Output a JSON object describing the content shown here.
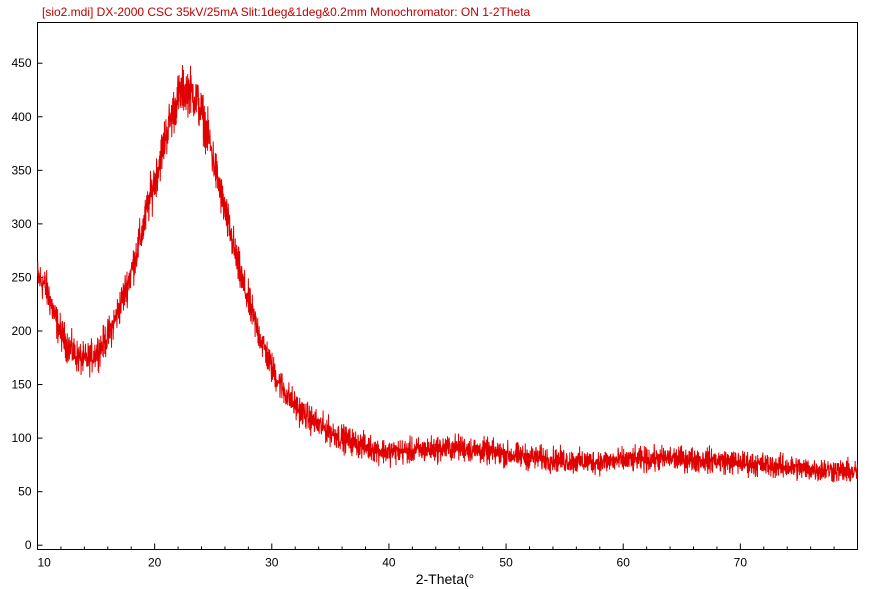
{
  "chart_data": {
    "type": "line",
    "title": "[sio2.mdi] DX-2000 CSC 35kV/25mA Slit:1deg&1deg&0.2mm Monochromator: ON 1-2Theta",
    "xlabel": "2-Theta(°",
    "ylabel": "",
    "xlim": [
      10,
      80
    ],
    "ylim": [
      -4,
      488
    ],
    "x_ticks": [
      10,
      20,
      30,
      40,
      50,
      60,
      70
    ],
    "x_tick_labels": [
      "10",
      "20",
      "30",
      "40",
      "50",
      "60",
      "70"
    ],
    "y_ticks": [
      0,
      50,
      100,
      150,
      200,
      250,
      300,
      350,
      400,
      450
    ],
    "y_tick_labels": [
      "0",
      "50",
      "100",
      "150",
      "200",
      "250",
      "300",
      "350",
      "400",
      "450"
    ],
    "grid": false,
    "legend": "none",
    "colors": {
      "series": "#e00000",
      "title": "#c00000",
      "axes": "#000000"
    },
    "series": [
      {
        "x": [
          10,
          10.5,
          11,
          11.5,
          12,
          12.5,
          13,
          13.5,
          14,
          14.5,
          15,
          15.5,
          16,
          16.5,
          17,
          17.5,
          18,
          18.5,
          19,
          19.5,
          20,
          20.5,
          21,
          21.5,
          22,
          22.5,
          23,
          23.5,
          24,
          24.5,
          25,
          25.5,
          26,
          26.5,
          27,
          27.5,
          28,
          28.5,
          29,
          29.5,
          30,
          31,
          32,
          33,
          34,
          35,
          36,
          37,
          38,
          39,
          40,
          42,
          44,
          46,
          48,
          50,
          52,
          54,
          56,
          58,
          60,
          62,
          64,
          66,
          68,
          70,
          72,
          74,
          76,
          78,
          80
        ],
        "y": [
          250,
          245,
          232,
          212,
          198,
          188,
          181,
          175,
          172,
          175,
          180,
          186,
          195,
          207,
          222,
          238,
          255,
          275,
          295,
          320,
          340,
          362,
          385,
          402,
          418,
          426,
          425,
          418,
          404,
          385,
          360,
          335,
          312,
          290,
          266,
          245,
          228,
          210,
          195,
          180,
          165,
          145,
          130,
          120,
          112,
          106,
          100,
          96,
          92,
          89,
          87,
          88,
          90,
          91,
          88,
          85,
          82,
          80,
          78,
          78,
          79,
          80,
          81,
          80,
          79,
          77,
          75,
          73,
          71,
          70,
          68
        ]
      }
    ]
  }
}
